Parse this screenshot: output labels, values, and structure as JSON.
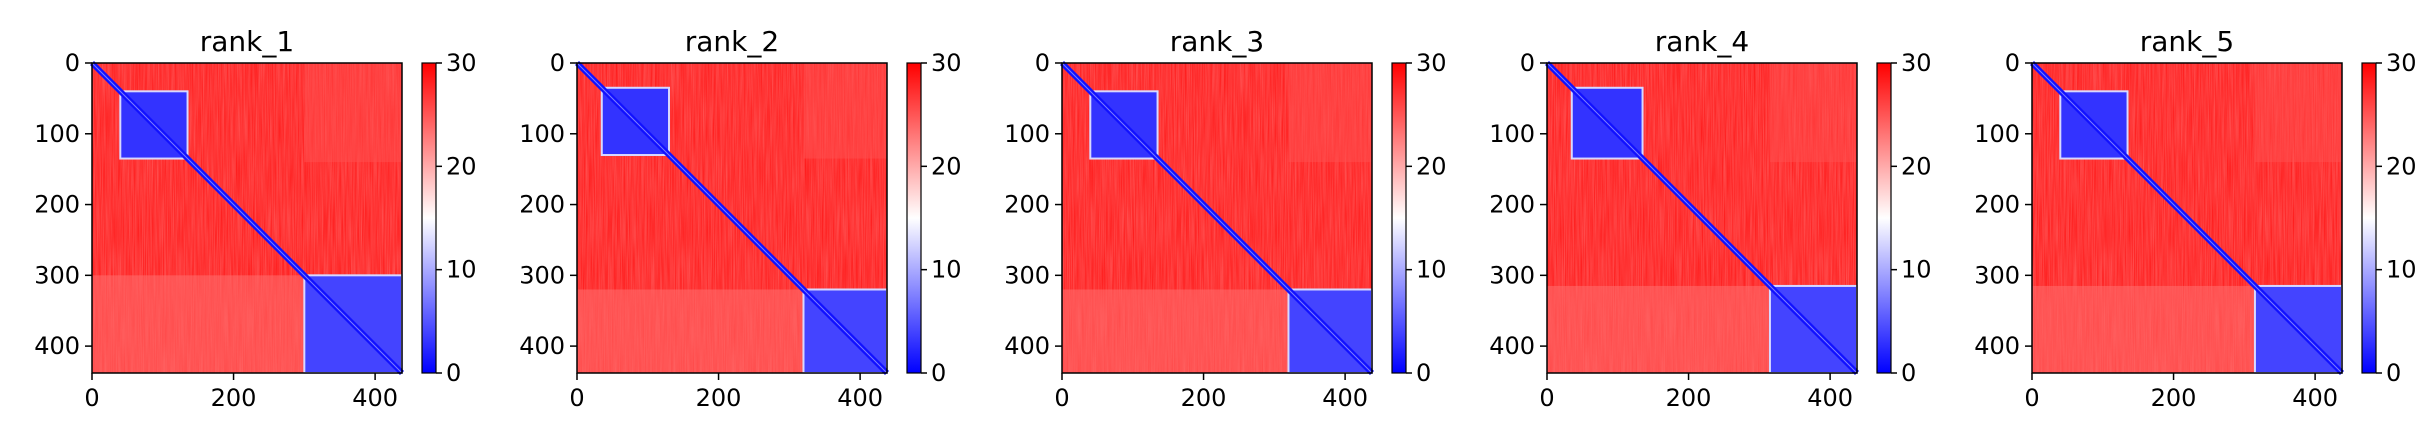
{
  "chart_data": [
    {
      "type": "heatmap",
      "title": "rank_1",
      "matrix_size": 438,
      "xticks": [
        0,
        200,
        400
      ],
      "yticks": [
        0,
        100,
        200,
        300,
        400
      ],
      "colorbar": {
        "min": 0,
        "max": 30,
        "ticks": [
          0,
          10,
          20,
          30
        ],
        "colors": [
          "#0000ff",
          "#ffffff",
          "#ff0000"
        ]
      },
      "blocks": [
        {
          "x": [
            40,
            135
          ],
          "y": [
            40,
            135
          ],
          "value": 3
        },
        {
          "x": [
            300,
            438
          ],
          "y": [
            300,
            438
          ],
          "value": 4
        }
      ],
      "background_value": 29,
      "diagonal_value": 1,
      "diagonal_width": 4
    },
    {
      "type": "heatmap",
      "title": "rank_2",
      "matrix_size": 438,
      "xticks": [
        0,
        200,
        400
      ],
      "yticks": [
        0,
        100,
        200,
        300,
        400
      ],
      "colorbar": {
        "min": 0,
        "max": 30,
        "ticks": [
          0,
          10,
          20,
          30
        ],
        "colors": [
          "#0000ff",
          "#ffffff",
          "#ff0000"
        ]
      },
      "blocks": [
        {
          "x": [
            35,
            130
          ],
          "y": [
            35,
            130
          ],
          "value": 3
        },
        {
          "x": [
            320,
            438
          ],
          "y": [
            320,
            438
          ],
          "value": 4
        }
      ],
      "background_value": 29,
      "diagonal_value": 1,
      "diagonal_width": 4
    },
    {
      "type": "heatmap",
      "title": "rank_3",
      "matrix_size": 438,
      "xticks": [
        0,
        200,
        400
      ],
      "yticks": [
        0,
        100,
        200,
        300,
        400
      ],
      "colorbar": {
        "min": 0,
        "max": 30,
        "ticks": [
          0,
          10,
          20,
          30
        ],
        "colors": [
          "#0000ff",
          "#ffffff",
          "#ff0000"
        ]
      },
      "blocks": [
        {
          "x": [
            40,
            135
          ],
          "y": [
            40,
            135
          ],
          "value": 3
        },
        {
          "x": [
            320,
            438
          ],
          "y": [
            320,
            438
          ],
          "value": 4
        }
      ],
      "background_value": 29,
      "diagonal_value": 1,
      "diagonal_width": 4
    },
    {
      "type": "heatmap",
      "title": "rank_4",
      "matrix_size": 438,
      "xticks": [
        0,
        200,
        400
      ],
      "yticks": [
        0,
        100,
        200,
        300,
        400
      ],
      "colorbar": {
        "min": 0,
        "max": 30,
        "ticks": [
          0,
          10,
          20,
          30
        ],
        "colors": [
          "#0000ff",
          "#ffffff",
          "#ff0000"
        ]
      },
      "blocks": [
        {
          "x": [
            35,
            135
          ],
          "y": [
            35,
            135
          ],
          "value": 3
        },
        {
          "x": [
            315,
            438
          ],
          "y": [
            315,
            438
          ],
          "value": 4
        }
      ],
      "background_value": 29,
      "diagonal_value": 1,
      "diagonal_width": 4
    },
    {
      "type": "heatmap",
      "title": "rank_5",
      "matrix_size": 438,
      "xticks": [
        0,
        200,
        400
      ],
      "yticks": [
        0,
        100,
        200,
        300,
        400
      ],
      "colorbar": {
        "min": 0,
        "max": 30,
        "ticks": [
          0,
          10,
          20,
          30
        ],
        "colors": [
          "#0000ff",
          "#ffffff",
          "#ff0000"
        ]
      },
      "blocks": [
        {
          "x": [
            40,
            135
          ],
          "y": [
            40,
            135
          ],
          "value": 3
        },
        {
          "x": [
            315,
            438
          ],
          "y": [
            315,
            438
          ],
          "value": 4
        }
      ],
      "background_value": 29,
      "diagonal_value": 1,
      "diagonal_width": 4
    }
  ]
}
